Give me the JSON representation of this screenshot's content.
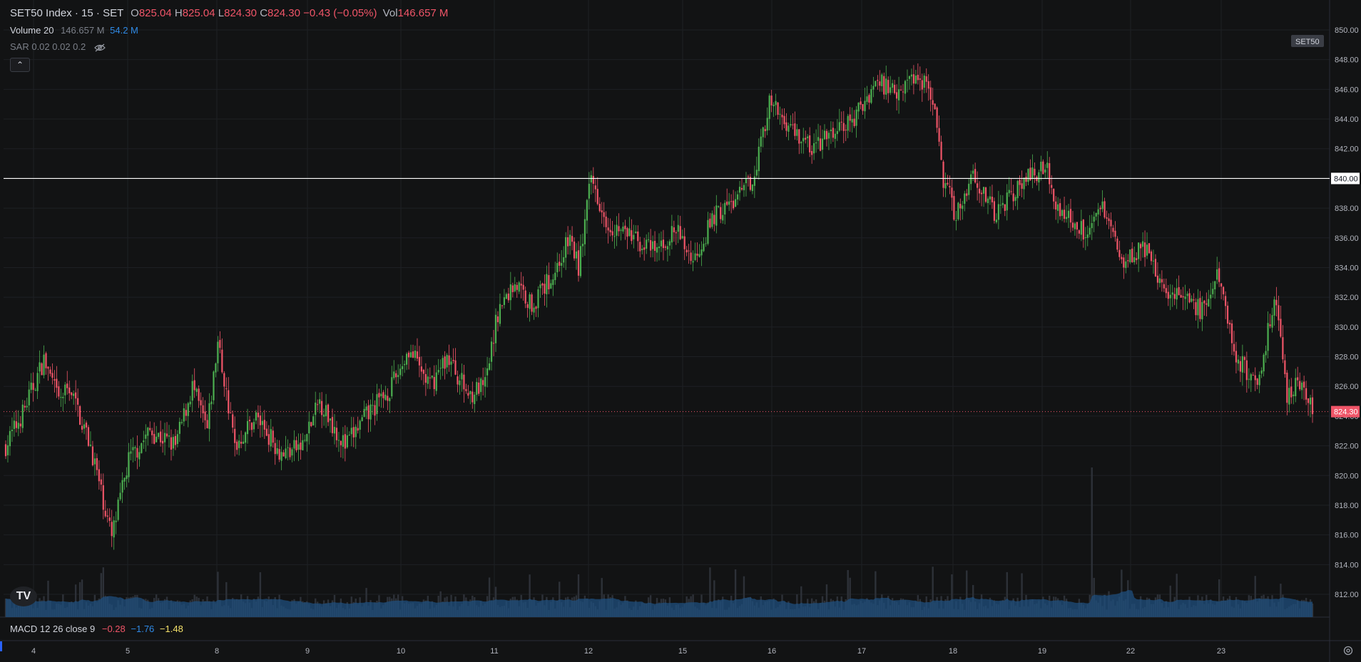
{
  "header": {
    "symbol": "SET50 Index · 15 · SET",
    "open_label": "O",
    "open": "825.04",
    "high_label": "H",
    "high": "825.04",
    "low_label": "L",
    "low": "824.30",
    "close_label": "C",
    "close": "824.30",
    "change": "−0.43 (−0.05%)",
    "vol_label": "Vol",
    "vol": "146.657 M"
  },
  "volume_legend": {
    "label": "Volume 20",
    "value": "146.657 M",
    "ma": "54.2 M"
  },
  "sar_legend": {
    "label": "SAR 0.02 0.02 0.2"
  },
  "macd_legend": {
    "label": "MACD 12 26 close 9",
    "macd": "−0.28",
    "signal": "−1.76",
    "hist": "−1.48"
  },
  "icons": {
    "collapse": "chevron-up-icon",
    "visibility": "eye-off-icon",
    "logo": "tradingview-logo-icon",
    "settings": "gear-icon"
  },
  "logo": {
    "text": "TV"
  },
  "colors": {
    "up": "#4caf50",
    "down": "#f05568",
    "volume": "#2a3a4f",
    "volume_ma": "#1f5a8f",
    "grid": "#1e2024",
    "line": "#ffffff",
    "price_tag": "#f05568"
  },
  "chart_data": {
    "type": "candlestick",
    "y_ticks": [
      "850.00",
      "848.00",
      "846.00",
      "844.00",
      "842.00",
      "840.00",
      "838.00",
      "836.00",
      "834.00",
      "832.00",
      "830.00",
      "828.00",
      "826.00",
      "824.00",
      "822.00",
      "820.00",
      "818.00",
      "816.00",
      "814.00",
      "812.00"
    ],
    "ylim": [
      810.4,
      851.0
    ],
    "x_ticks": [
      "4",
      "5",
      "8",
      "9",
      "10",
      "11",
      "12",
      "15",
      "16",
      "17",
      "18",
      "19",
      "22",
      "23"
    ],
    "symbol_tag": "SET50",
    "horizontal_line": {
      "value": 840.0,
      "label": "840.00"
    },
    "last_price": {
      "value": 824.3,
      "label": "824.30"
    },
    "anchors": [
      [
        0,
        822.0
      ],
      [
        8,
        824.2
      ],
      [
        18,
        827.8
      ],
      [
        25,
        825.0
      ],
      [
        30,
        826.0
      ],
      [
        40,
        822.0
      ],
      [
        50,
        815.8
      ],
      [
        58,
        821.0
      ],
      [
        68,
        823.0
      ],
      [
        80,
        822.0
      ],
      [
        88,
        826.0
      ],
      [
        95,
        823.0
      ],
      [
        100,
        829.0
      ],
      [
        108,
        822.0
      ],
      [
        118,
        824.0
      ],
      [
        130,
        821.5
      ],
      [
        140,
        822.0
      ],
      [
        148,
        825.0
      ],
      [
        160,
        822.0
      ],
      [
        170,
        824.0
      ],
      [
        182,
        826.0
      ],
      [
        190,
        828.5
      ],
      [
        200,
        826.0
      ],
      [
        208,
        828.0
      ],
      [
        218,
        825.5
      ],
      [
        226,
        826.0
      ],
      [
        232,
        831.0
      ],
      [
        240,
        833.0
      ],
      [
        248,
        831.5
      ],
      [
        258,
        833.5
      ],
      [
        266,
        836.0
      ],
      [
        270,
        834.0
      ],
      [
        276,
        840.0
      ],
      [
        284,
        837.0
      ],
      [
        296,
        836.0
      ],
      [
        306,
        835.0
      ],
      [
        316,
        836.5
      ],
      [
        324,
        834.5
      ],
      [
        334,
        837.5
      ],
      [
        344,
        838.5
      ],
      [
        352,
        840.0
      ],
      [
        360,
        845.0
      ],
      [
        370,
        843.5
      ],
      [
        380,
        842.0
      ],
      [
        390,
        843.0
      ],
      [
        400,
        844.0
      ],
      [
        410,
        846.5
      ],
      [
        420,
        846.0
      ],
      [
        430,
        847.0
      ],
      [
        436,
        846.0
      ],
      [
        442,
        840.0
      ],
      [
        448,
        837.5
      ],
      [
        456,
        840.5
      ],
      [
        466,
        837.5
      ],
      [
        474,
        839.0
      ],
      [
        482,
        840.0
      ],
      [
        490,
        841.0
      ],
      [
        496,
        838.0
      ],
      [
        508,
        836.5
      ],
      [
        518,
        838.0
      ],
      [
        526,
        834.5
      ],
      [
        536,
        835.5
      ],
      [
        544,
        833.0
      ],
      [
        554,
        832.0
      ],
      [
        564,
        831.0
      ],
      [
        572,
        833.5
      ],
      [
        580,
        828.0
      ],
      [
        590,
        826.0
      ],
      [
        598,
        832.0
      ],
      [
        604,
        825.5
      ],
      [
        610,
        826.5
      ],
      [
        616,
        824.3
      ]
    ],
    "candle_count": 617,
    "volume_range_note": "relative",
    "volume_max": 100
  }
}
